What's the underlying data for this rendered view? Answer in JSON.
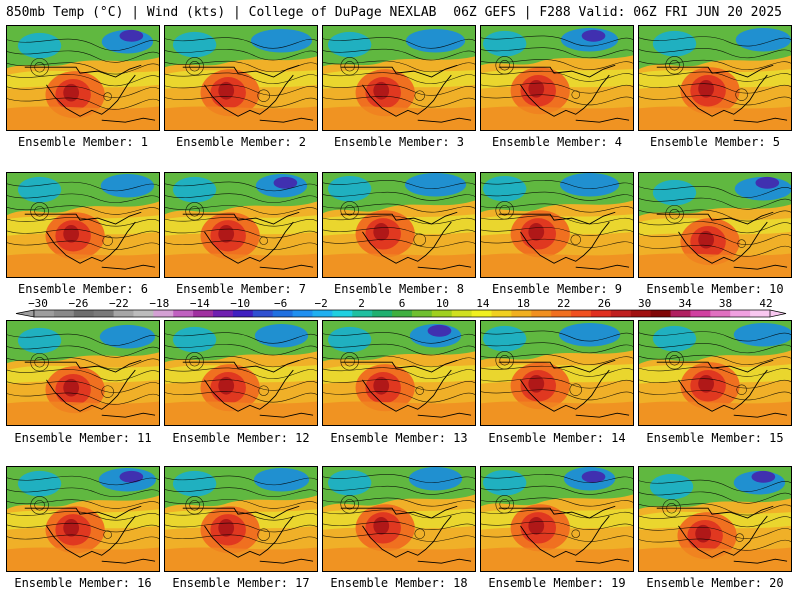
{
  "header": {
    "title_left": "850mb Temp (°C) | Wind (kts) | College of DuPage NEXLAB",
    "title_right": "06Z GEFS | F288 Valid: 06Z FRI JUN 20 2025"
  },
  "member_label_prefix": "Ensemble Member:",
  "members": [
    {
      "label": "Ensemble Member: 1"
    },
    {
      "label": "Ensemble Member: 2"
    },
    {
      "label": "Ensemble Member: 3"
    },
    {
      "label": "Ensemble Member: 4"
    },
    {
      "label": "Ensemble Member: 5"
    },
    {
      "label": "Ensemble Member: 6"
    },
    {
      "label": "Ensemble Member: 7"
    },
    {
      "label": "Ensemble Member: 8"
    },
    {
      "label": "Ensemble Member: 9"
    },
    {
      "label": "Ensemble Member: 10"
    },
    {
      "label": "Ensemble Member: 11"
    },
    {
      "label": "Ensemble Member: 12"
    },
    {
      "label": "Ensemble Member: 13"
    },
    {
      "label": "Ensemble Member: 14"
    },
    {
      "label": "Ensemble Member: 15"
    },
    {
      "label": "Ensemble Member: 16"
    },
    {
      "label": "Ensemble Member: 17"
    },
    {
      "label": "Ensemble Member: 18"
    },
    {
      "label": "Ensemble Member: 19"
    },
    {
      "label": "Ensemble Member: 20"
    }
  ],
  "colorbar": {
    "tick_labels": [
      "−30",
      "−26",
      "−22",
      "−18",
      "−14",
      "−10",
      "−6",
      "−2",
      "2",
      "6",
      "10",
      "14",
      "18",
      "22",
      "26",
      "30",
      "34",
      "38",
      "42"
    ],
    "colors": [
      "#9e9e9e",
      "#8a8a8a",
      "#6e6e6e",
      "#7a7a7a",
      "#a6a6a6",
      "#bcbcbc",
      "#d4a0d4",
      "#c060c0",
      "#a030a0",
      "#7020b0",
      "#4020c0",
      "#3050d0",
      "#2070e0",
      "#2090f0",
      "#20b0f0",
      "#20d0e0",
      "#20c0a0",
      "#20b070",
      "#40b040",
      "#70c030",
      "#a0d020",
      "#d0e020",
      "#f0f020",
      "#f0d020",
      "#f0b020",
      "#f09020",
      "#f07020",
      "#f05020",
      "#e03020",
      "#c02020",
      "#a01010",
      "#800808",
      "#b02060",
      "#d040a0",
      "#e070c0",
      "#f0a0e0",
      "#f8c8f0"
    ]
  }
}
